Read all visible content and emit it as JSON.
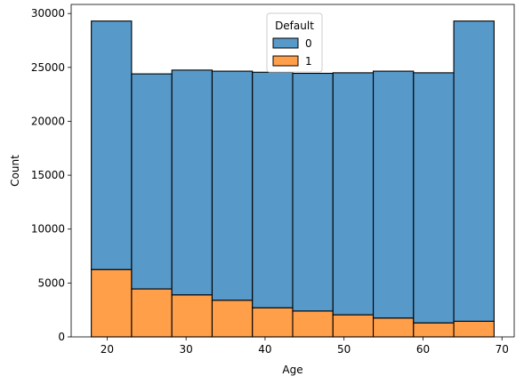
{
  "chart_data": {
    "type": "bar",
    "subtype": "stacked-histogram",
    "title": "",
    "xlabel": "Age",
    "ylabel": "Count",
    "xlim": [
      15.45,
      71.55
    ],
    "ylim": [
      0,
      30840
    ],
    "bin_edges": [
      18,
      23.1,
      28.2,
      33.3,
      38.4,
      43.5,
      48.6,
      53.7,
      58.8,
      63.9,
      69
    ],
    "xticks": [
      20,
      30,
      40,
      50,
      60,
      70
    ],
    "yticks": [
      0,
      5000,
      10000,
      15000,
      20000,
      25000,
      30000
    ],
    "legend": {
      "title": "Default",
      "position": "upper-center"
    },
    "series": [
      {
        "name": "1",
        "color": "#ff9f4a",
        "values": [
          6250,
          4450,
          3900,
          3400,
          2700,
          2400,
          2050,
          1750,
          1300,
          1450
        ]
      },
      {
        "name": "0",
        "color": "#5799c9",
        "values": [
          23050,
          19950,
          20850,
          21250,
          21850,
          22050,
          22450,
          22900,
          23200,
          27850
        ]
      }
    ],
    "totals": [
      29300,
      24400,
      24750,
      24650,
      24550,
      24450,
      24500,
      24650,
      24500,
      29300
    ]
  }
}
